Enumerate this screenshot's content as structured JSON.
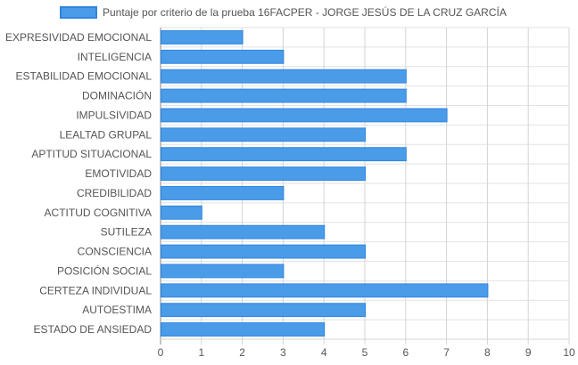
{
  "chart_data": {
    "type": "bar",
    "orientation": "horizontal",
    "categories": [
      "EXPRESIVIDAD EMOCIONAL",
      "INTELIGENCIA",
      "ESTABILIDAD EMOCIONAL",
      "DOMINACIÓN",
      "IMPULSIVIDAD",
      "LEALTAD GRUPAL",
      "APTITUD SITUACIONAL",
      "EMOTIVIDAD",
      "CREDIBILIDAD",
      "ACTITUD COGNITIVA",
      "SUTILEZA",
      "CONSCIENCIA",
      "POSICIÓN SOCIAL",
      "CERTEZA INDIVIDUAL",
      "AUTOESTIMA",
      "ESTADO DE ANSIEDAD"
    ],
    "series": [
      {
        "name": "Puntaje por criterio de la prueba 16FACPER - JORGE JESÚS DE LA CRUZ GARCÍA",
        "values": [
          2,
          3,
          6,
          6,
          7,
          5,
          6,
          5,
          3,
          1,
          4,
          5,
          3,
          8,
          5,
          4
        ],
        "color": "#4a9be8",
        "border_color": "#2f86e0"
      }
    ],
    "xlim": [
      0,
      10
    ],
    "x_ticks": [
      "0",
      "1",
      "2",
      "3",
      "4",
      "5",
      "6",
      "7",
      "8",
      "9",
      "10"
    ],
    "grid": true,
    "legend_position": "top"
  }
}
